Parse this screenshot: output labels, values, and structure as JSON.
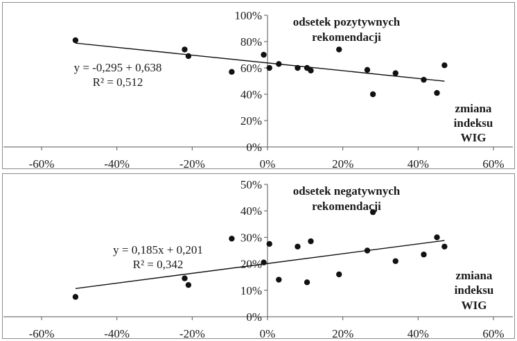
{
  "chart_data": [
    {
      "type": "scatter",
      "title_lines": [
        "odsetek pozytywnych",
        "rekomendacji"
      ],
      "xlabel_lines": [
        "zmiana",
        "indeksu",
        "WIG"
      ],
      "xlim": [
        -0.6,
        0.6
      ],
      "ylim": [
        0,
        1.0
      ],
      "x_ticks": [
        -0.6,
        -0.4,
        -0.2,
        0,
        0.2,
        0.4,
        0.6
      ],
      "x_tick_labels": [
        "-60%",
        "-40%",
        "-20%",
        "0%",
        "20%",
        "40%",
        "60%"
      ],
      "y_ticks": [
        0,
        0.2,
        0.4,
        0.6,
        0.8,
        1.0
      ],
      "y_tick_labels": [
        "0%",
        "20%",
        "40%",
        "60%",
        "80%",
        "100%"
      ],
      "equation": "y = -0,295 + 0,638",
      "r2": "R² = 0,512",
      "trend": {
        "slope": -0.295,
        "intercept": 0.638,
        "x_range": [
          -0.51,
          0.47
        ]
      },
      "points": [
        {
          "x": -0.51,
          "y": 0.81
        },
        {
          "x": -0.22,
          "y": 0.74
        },
        {
          "x": -0.21,
          "y": 0.69
        },
        {
          "x": -0.095,
          "y": 0.57
        },
        {
          "x": -0.01,
          "y": 0.7
        },
        {
          "x": 0.005,
          "y": 0.6
        },
        {
          "x": 0.03,
          "y": 0.63
        },
        {
          "x": 0.08,
          "y": 0.6
        },
        {
          "x": 0.105,
          "y": 0.6
        },
        {
          "x": 0.115,
          "y": 0.58
        },
        {
          "x": 0.19,
          "y": 0.74
        },
        {
          "x": 0.265,
          "y": 0.585
        },
        {
          "x": 0.28,
          "y": 0.4
        },
        {
          "x": 0.34,
          "y": 0.56
        },
        {
          "x": 0.415,
          "y": 0.51
        },
        {
          "x": 0.45,
          "y": 0.41
        },
        {
          "x": 0.47,
          "y": 0.62
        }
      ]
    },
    {
      "type": "scatter",
      "title_lines": [
        "odsetek negatywnych",
        "rekomendacji"
      ],
      "xlabel_lines": [
        "zmiana",
        "indeksu",
        "WIG"
      ],
      "xlim": [
        -0.6,
        0.6
      ],
      "ylim": [
        0,
        0.5
      ],
      "x_ticks": [
        -0.6,
        -0.4,
        -0.2,
        0,
        0.2,
        0.4,
        0.6
      ],
      "x_tick_labels": [
        "-60%",
        "-40%",
        "-20%",
        "0%",
        "20%",
        "40%",
        "60%"
      ],
      "y_ticks": [
        0,
        0.1,
        0.2,
        0.3,
        0.4,
        0.5
      ],
      "y_tick_labels": [
        "0%",
        "10%",
        "20%",
        "30%",
        "40%",
        "50%"
      ],
      "equation": "y = 0,185x + 0,201",
      "r2": "R² = 0,342",
      "trend": {
        "slope": 0.185,
        "intercept": 0.201,
        "x_range": [
          -0.51,
          0.47
        ]
      },
      "points": [
        {
          "x": -0.51,
          "y": 0.075
        },
        {
          "x": -0.22,
          "y": 0.145
        },
        {
          "x": -0.21,
          "y": 0.12
        },
        {
          "x": -0.095,
          "y": 0.295
        },
        {
          "x": -0.01,
          "y": 0.205
        },
        {
          "x": 0.005,
          "y": 0.275
        },
        {
          "x": 0.03,
          "y": 0.14
        },
        {
          "x": 0.08,
          "y": 0.265
        },
        {
          "x": 0.105,
          "y": 0.13
        },
        {
          "x": 0.115,
          "y": 0.285
        },
        {
          "x": 0.19,
          "y": 0.16
        },
        {
          "x": 0.265,
          "y": 0.25
        },
        {
          "x": 0.28,
          "y": 0.395
        },
        {
          "x": 0.34,
          "y": 0.21
        },
        {
          "x": 0.415,
          "y": 0.235
        },
        {
          "x": 0.45,
          "y": 0.3
        },
        {
          "x": 0.47,
          "y": 0.265
        }
      ]
    }
  ]
}
